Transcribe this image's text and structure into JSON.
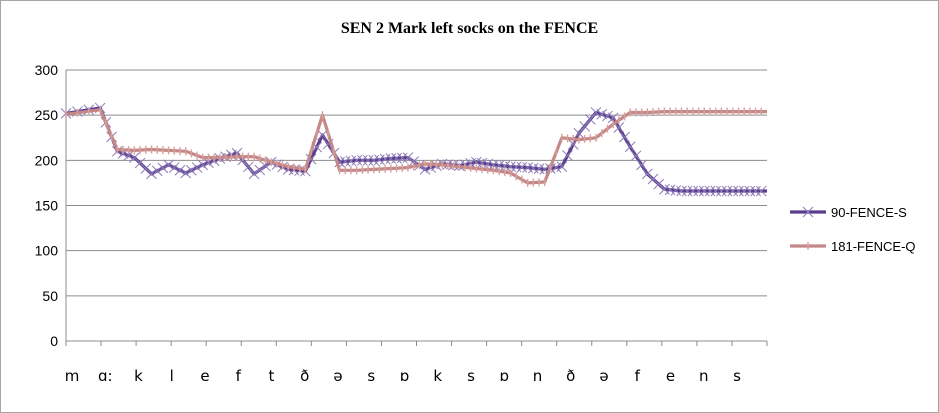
{
  "chart_data": {
    "type": "line",
    "title": "SEN 2 Mark left socks on the FENCE",
    "xlabel": "",
    "ylabel": "",
    "ylim": [
      0,
      300
    ],
    "yticks": [
      0,
      50,
      100,
      150,
      200,
      250,
      300
    ],
    "grid": true,
    "legend_position": "right",
    "categories": [
      "m",
      "ɑ:",
      "k",
      "l",
      "e",
      "f",
      "t",
      "ð",
      "ə",
      "s",
      "ɒ",
      "k",
      "s",
      "ɒ",
      "n",
      "ð",
      "ə",
      "f",
      "e",
      "n",
      "s"
    ],
    "x_range": [
      0,
      41
    ],
    "series": [
      {
        "name": "90-FENCE-S",
        "color": "#5b3d8f",
        "marker": "x",
        "x": [
          0,
          2,
          3,
          4,
          5,
          6,
          7,
          8,
          9,
          10,
          11,
          12,
          13,
          14,
          15,
          16,
          17,
          18,
          19,
          20,
          21,
          22,
          23,
          24,
          25,
          26,
          27,
          28,
          29,
          30,
          31,
          32,
          33,
          34,
          35,
          36,
          37,
          38,
          39,
          40,
          41
        ],
        "values": [
          252,
          258,
          210,
          203,
          185,
          195,
          186,
          195,
          202,
          208,
          185,
          198,
          190,
          188,
          228,
          198,
          200,
          200,
          202,
          203,
          190,
          196,
          194,
          198,
          195,
          193,
          192,
          190,
          193,
          230,
          253,
          247,
          215,
          185,
          168,
          166,
          166,
          166,
          166,
          166,
          166
        ]
      },
      {
        "name": "181-FENCE-Q",
        "color": "#c48888",
        "marker": "dash",
        "x": [
          0,
          2,
          3,
          4,
          5,
          6,
          7,
          8,
          9,
          10,
          11,
          12,
          13,
          14,
          15,
          16,
          17,
          18,
          19,
          20,
          21,
          22,
          23,
          24,
          25,
          26,
          27,
          28,
          29,
          30,
          31,
          32,
          33,
          34,
          35,
          36,
          37,
          38,
          39,
          40,
          41
        ],
        "values": [
          251,
          256,
          212,
          211,
          212,
          211,
          210,
          203,
          203,
          204,
          204,
          198,
          193,
          190,
          250,
          189,
          189,
          190,
          191,
          192,
          196,
          195,
          193,
          191,
          189,
          186,
          175,
          176,
          225,
          223,
          225,
          240,
          253,
          253,
          254,
          254,
          254,
          254,
          254,
          254,
          254
        ]
      }
    ]
  }
}
